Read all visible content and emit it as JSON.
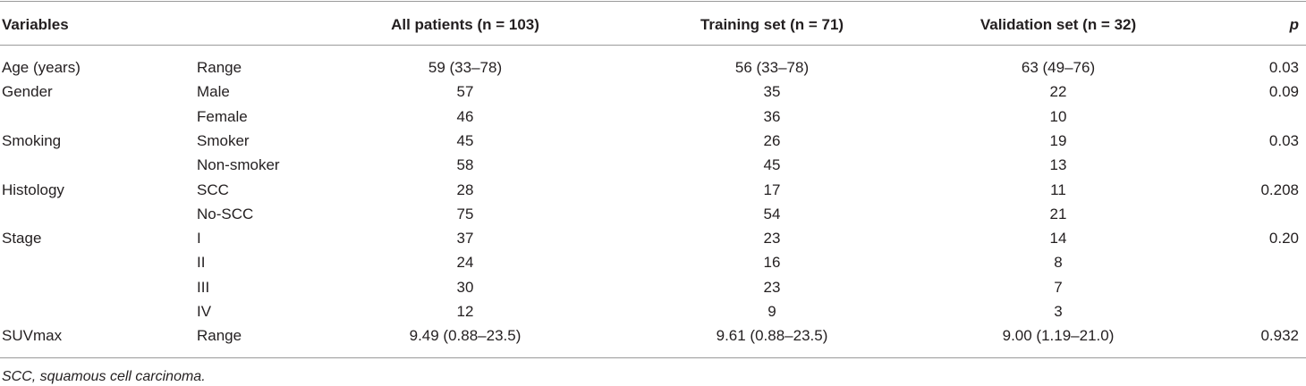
{
  "table": {
    "header": [
      "Variables",
      "All patients (n = 103)",
      "Training set (n = 71)",
      "Validation set (n = 32)",
      "p"
    ],
    "rows": [
      [
        "Age (years)",
        "Range",
        "59 (33–78)",
        "56 (33–78)",
        "63 (49–76)",
        "0.03"
      ],
      [
        "Gender",
        "Male",
        "57",
        "35",
        "22",
        "0.09"
      ],
      [
        null,
        "Female",
        "46",
        "36",
        "10",
        null
      ],
      [
        "Smoking",
        "Smoker",
        "45",
        "26",
        "19",
        "0.03"
      ],
      [
        null,
        "Non-smoker",
        "58",
        "45",
        "13",
        null
      ],
      [
        "Histology",
        "SCC",
        "28",
        "17",
        "11",
        "0.208"
      ],
      [
        null,
        "No-SCC",
        "75",
        "54",
        "21",
        null
      ],
      [
        "Stage",
        "I",
        "37",
        "23",
        "14",
        "0.20"
      ],
      [
        null,
        "II",
        "24",
        "16",
        "8",
        null
      ],
      [
        null,
        "III",
        "30",
        "23",
        "7",
        null
      ],
      [
        null,
        "IV",
        "12",
        "9",
        "3",
        null
      ],
      [
        "SUVmax",
        "Range",
        "9.49 (0.88–23.5)",
        "9.61 (0.88–23.5)",
        "9.00 (1.19–21.0)",
        "0.932"
      ]
    ],
    "footnote": "SCC, squamous cell carcinoma."
  }
}
